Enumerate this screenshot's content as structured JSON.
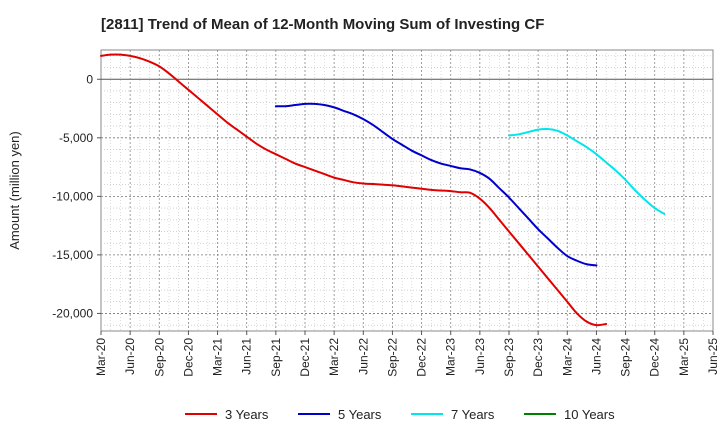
{
  "chart_data": {
    "type": "line",
    "title": "[2811]  Trend of Mean of 12-Month Moving Sum of Investing CF",
    "xlabel": "",
    "ylabel": "Amount (million yen)",
    "ylim": [
      -21500,
      2500
    ],
    "yticks": [
      0,
      -5000,
      -10000,
      -15000,
      -20000
    ],
    "ytick_labels": [
      "0",
      "-5,000",
      "-10,000",
      "-15,000",
      "-20,000"
    ],
    "xlim": [
      0,
      63
    ],
    "x_tick_positions": [
      0,
      3,
      6,
      9,
      12,
      15,
      18,
      21,
      24,
      27,
      30,
      33,
      36,
      39,
      42,
      45,
      48,
      51,
      54,
      57,
      60,
      63
    ],
    "x_tick_labels": [
      "Mar-20",
      "Jun-20",
      "Sep-20",
      "Dec-20",
      "Mar-21",
      "Jun-21",
      "Sep-21",
      "Dec-21",
      "Mar-22",
      "Jun-22",
      "Sep-22",
      "Dec-22",
      "Mar-23",
      "Jun-23",
      "Sep-23",
      "Dec-23",
      "Mar-24",
      "Jun-24",
      "Sep-24",
      "Dec-24",
      "Mar-25",
      "Jun-25"
    ],
    "grid": true,
    "legend_position": "bottom",
    "series": [
      {
        "name": "3 Years",
        "color": "#e00000",
        "points": [
          [
            0,
            2000
          ],
          [
            1,
            2100
          ],
          [
            2,
            2100
          ],
          [
            3,
            2000
          ],
          [
            4,
            1800
          ],
          [
            5,
            1500
          ],
          [
            6,
            1100
          ],
          [
            7,
            500
          ],
          [
            8,
            -200
          ],
          [
            9,
            -900
          ],
          [
            10,
            -1600
          ],
          [
            11,
            -2300
          ],
          [
            12,
            -3000
          ],
          [
            13,
            -3700
          ],
          [
            14,
            -4300
          ],
          [
            15,
            -4900
          ],
          [
            16,
            -5500
          ],
          [
            17,
            -6000
          ],
          [
            18,
            -6400
          ],
          [
            19,
            -6800
          ],
          [
            20,
            -7200
          ],
          [
            21,
            -7500
          ],
          [
            22,
            -7800
          ],
          [
            23,
            -8100
          ],
          [
            24,
            -8400
          ],
          [
            25,
            -8600
          ],
          [
            26,
            -8800
          ],
          [
            27,
            -8900
          ],
          [
            28,
            -8950
          ],
          [
            29,
            -9000
          ],
          [
            30,
            -9050
          ],
          [
            31,
            -9150
          ],
          [
            32,
            -9250
          ],
          [
            33,
            -9350
          ],
          [
            34,
            -9450
          ],
          [
            35,
            -9500
          ],
          [
            36,
            -9550
          ],
          [
            37,
            -9650
          ],
          [
            38,
            -9700
          ],
          [
            39,
            -10200
          ],
          [
            40,
            -11000
          ],
          [
            41,
            -12000
          ],
          [
            42,
            -13000
          ],
          [
            43,
            -14000
          ],
          [
            44,
            -15000
          ],
          [
            45,
            -16000
          ],
          [
            46,
            -17000
          ],
          [
            47,
            -18000
          ],
          [
            48,
            -19000
          ],
          [
            49,
            -20000
          ],
          [
            50,
            -20700
          ],
          [
            51,
            -21000
          ],
          [
            52,
            -20900
          ]
        ]
      },
      {
        "name": "5 Years",
        "color": "#0000cc",
        "points": [
          [
            18,
            -2300
          ],
          [
            19,
            -2300
          ],
          [
            20,
            -2200
          ],
          [
            21,
            -2100
          ],
          [
            22,
            -2100
          ],
          [
            23,
            -2200
          ],
          [
            24,
            -2400
          ],
          [
            25,
            -2700
          ],
          [
            26,
            -3000
          ],
          [
            27,
            -3400
          ],
          [
            28,
            -3900
          ],
          [
            29,
            -4500
          ],
          [
            30,
            -5100
          ],
          [
            31,
            -5600
          ],
          [
            32,
            -6100
          ],
          [
            33,
            -6500
          ],
          [
            34,
            -6900
          ],
          [
            35,
            -7200
          ],
          [
            36,
            -7400
          ],
          [
            37,
            -7600
          ],
          [
            38,
            -7700
          ],
          [
            39,
            -8000
          ],
          [
            40,
            -8500
          ],
          [
            41,
            -9300
          ],
          [
            42,
            -10100
          ],
          [
            43,
            -11000
          ],
          [
            44,
            -11900
          ],
          [
            45,
            -12800
          ],
          [
            46,
            -13600
          ],
          [
            47,
            -14400
          ],
          [
            48,
            -15100
          ],
          [
            49,
            -15500
          ],
          [
            50,
            -15800
          ],
          [
            51,
            -15900
          ]
        ]
      },
      {
        "name": "7 Years",
        "color": "#00e5ee",
        "points": [
          [
            42,
            -4800
          ],
          [
            43,
            -4700
          ],
          [
            44,
            -4500
          ],
          [
            45,
            -4300
          ],
          [
            46,
            -4250
          ],
          [
            47,
            -4400
          ],
          [
            48,
            -4800
          ],
          [
            49,
            -5300
          ],
          [
            50,
            -5800
          ],
          [
            51,
            -6400
          ],
          [
            52,
            -7100
          ],
          [
            53,
            -7800
          ],
          [
            54,
            -8600
          ],
          [
            55,
            -9500
          ],
          [
            56,
            -10300
          ],
          [
            57,
            -11000
          ],
          [
            58,
            -11500
          ]
        ]
      },
      {
        "name": "10 Years",
        "color": "#008000",
        "points": []
      }
    ]
  }
}
